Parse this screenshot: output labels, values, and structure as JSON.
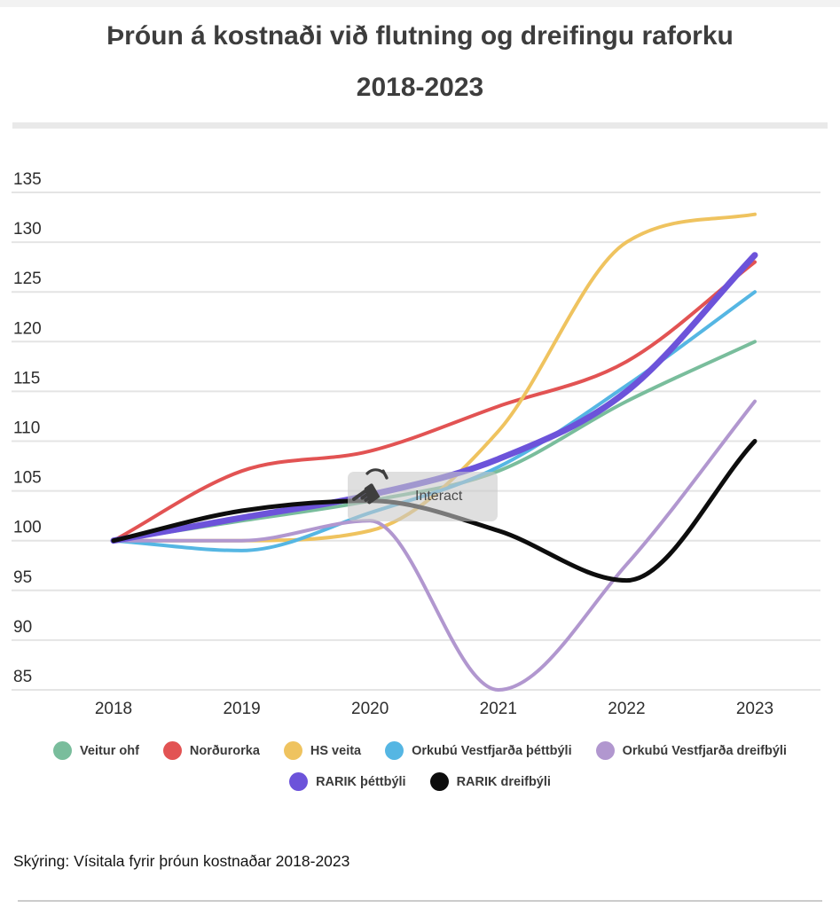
{
  "header": {
    "title": "Þróun á kostnaði við flutning og dreifingu raforku",
    "subtitle": "2018-2023"
  },
  "chart_data": {
    "type": "line",
    "title": "Þróun á kostnaði við flutning og dreifingu raforku 2018-2023",
    "xlabel": "",
    "ylabel": "",
    "x": [
      "2018",
      "2019",
      "2020",
      "2021",
      "2022",
      "2023"
    ],
    "ylim": [
      85,
      135
    ],
    "yticks": [
      135,
      130,
      125,
      120,
      115,
      110,
      105,
      100,
      95,
      90,
      85
    ],
    "grid": true,
    "grid_color": "#e4e4e4",
    "legend_position": "bottom",
    "series": [
      {
        "name": "Veitur ohf",
        "color": "#79bd9c",
        "width": 4,
        "values": [
          100,
          102,
          104,
          107,
          114,
          120
        ]
      },
      {
        "name": "Norðurorka",
        "color": "#e25353",
        "width": 4,
        "values": [
          100,
          107,
          109,
          113.5,
          118,
          128
        ]
      },
      {
        "name": "HS veita",
        "color": "#efc35f",
        "width": 4,
        "values": [
          100,
          100,
          101,
          111,
          130,
          132.8
        ]
      },
      {
        "name": "Orkubú Vestfjarða þéttbýli",
        "color": "#55b6e3",
        "width": 4,
        "values": [
          100,
          99,
          102.8,
          107.4,
          115.6,
          125
        ]
      },
      {
        "name": "Orkubú Vestfjarða dreifbýli",
        "color": "#b197cf",
        "width": 4,
        "values": [
          100,
          100,
          102,
          85,
          97.6,
          114
        ]
      },
      {
        "name": "RARIK þéttbýli",
        "color": "#6c53da",
        "width": 7,
        "values": [
          100,
          102.3,
          104.6,
          108.2,
          115,
          128.7
        ]
      },
      {
        "name": "RARIK dreifbýli",
        "color": "#0d0d0d",
        "width": 5,
        "values": [
          100,
          103,
          104,
          101,
          96,
          110
        ]
      }
    ]
  },
  "legend": {
    "rows": [
      [
        0,
        1,
        2,
        3,
        4
      ],
      [
        5,
        6
      ]
    ]
  },
  "overlay": {
    "label": "Interact",
    "icon": "tap-hand-icon",
    "hand_glyph": "☚"
  },
  "footer": {
    "note": "Skýring: Vísitala fyrir þróun kostnaðar 2018-2023"
  }
}
